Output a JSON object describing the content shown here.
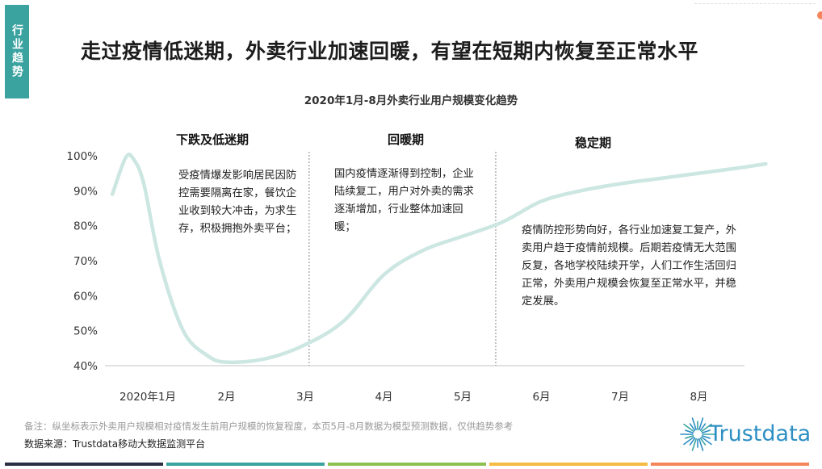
{
  "side_tab": "行业趋势",
  "headline": "走过疫情低迷期，外卖行业加速回暖，有望在短期内恢复至正常水平",
  "chart_data": {
    "type": "line",
    "title": "2020年1月-8月外卖行业用户规模变化趋势",
    "categories": [
      "2020年1月",
      "2月",
      "3月",
      "4月",
      "5月",
      "6月",
      "7月",
      "8月"
    ],
    "y_tick_labels": [
      "40%",
      "50%",
      "60%",
      "70%",
      "80%",
      "90%",
      "100%"
    ],
    "ylim": [
      40,
      100
    ],
    "grid": false,
    "series": [
      {
        "color": "#cce6e2",
        "x": [
          -0.45,
          -0.28,
          -0.18,
          -0.05,
          0.15,
          0.45,
          0.75,
          1.0,
          1.5,
          2.0,
          2.5,
          3.0,
          3.5,
          4.0,
          4.5,
          5.0,
          5.5,
          6.0,
          6.5,
          7.0,
          7.5,
          7.85
        ],
        "values": [
          89,
          99.5,
          99,
          92,
          70,
          50,
          43,
          41,
          42,
          46,
          53,
          66,
          73,
          77,
          81,
          87,
          90,
          92,
          93.5,
          95,
          96.5,
          97.7
        ]
      }
    ],
    "dividers_at": [
      2.05,
      4.42
    ],
    "periods": [
      {
        "label": "下跌及低迷期",
        "note": "受疫情爆发影响居民因防控需要隔离在家，餐饮企业收到较大冲击，为求生存，积极拥抱外卖平台；"
      },
      {
        "label": "回暖期",
        "note": "国内疫情逐渐得到控制，企业陆续复工，用户对外卖的需求逐渐增加，行业整体加速回暖；"
      },
      {
        "label": "稳定期",
        "note": "疫情防控形势向好，各行业加速复工复产，外卖用户趋于疫情前规模。后期若疫情无大范围反复，各地学校陆续开学，人们工作生活回归正常，外卖用户规模会恢复至正常水平，并稳定发展。"
      }
    ]
  },
  "footnote": "备注：纵坐标表示外卖用户规模相对疫情发生前用户规模的恢复程度，本页5月-8月数据为模型预测数据，仅供趋势参考",
  "source": "数据来源：Trustdata移动大数据监测平台",
  "logo_text": "Trustdata",
  "colors": {
    "accent": "#3aa3a0",
    "curve": "#cce6e2",
    "logo": "#2d8fc4"
  },
  "bottom_bar_colors": [
    "#2b2f44",
    "#3aa3a0",
    "#8cc152",
    "#f6bb42",
    "#f5865c"
  ]
}
